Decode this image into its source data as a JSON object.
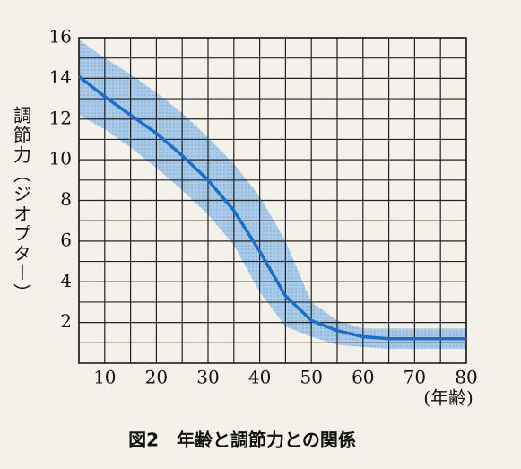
{
  "chart_data": {
    "type": "line",
    "y_label": "調節力（ジオプター）",
    "x_label": "(年齢)",
    "caption": "図2　年齢と調節力との関係",
    "x": [
      5,
      10,
      15,
      20,
      25,
      30,
      35,
      40,
      45,
      50,
      55,
      60,
      65,
      70,
      75,
      80
    ],
    "values": [
      14.1,
      13.1,
      12.2,
      11.3,
      10.2,
      9.0,
      7.5,
      5.5,
      3.3,
      2.1,
      1.6,
      1.3,
      1.2,
      1.2,
      1.2,
      1.2
    ],
    "band_upper": [
      15.9,
      15.0,
      14.2,
      13.3,
      12.3,
      11.1,
      9.8,
      8.2,
      6.0,
      3.0,
      2.1,
      1.7,
      1.7,
      1.7,
      1.7,
      1.7
    ],
    "band_lower": [
      12.2,
      11.5,
      10.6,
      9.6,
      8.5,
      7.3,
      5.8,
      3.5,
      1.8,
      1.3,
      0.9,
      0.8,
      0.7,
      0.7,
      0.7,
      0.7
    ],
    "color": "#1a6fc9",
    "band_color": "#a9cbea",
    "xlim": [
      5,
      80
    ],
    "xticks": [
      10,
      20,
      30,
      40,
      50,
      60,
      70,
      80
    ],
    "xminor": [
      5,
      15,
      25,
      35,
      45,
      55,
      65,
      75
    ],
    "ylim": [
      0,
      16
    ],
    "yticks": [
      2,
      4,
      6,
      8,
      10,
      12,
      14,
      16
    ],
    "yminor": [
      1,
      3,
      5,
      7,
      9,
      11,
      13,
      15
    ],
    "grid": true
  }
}
